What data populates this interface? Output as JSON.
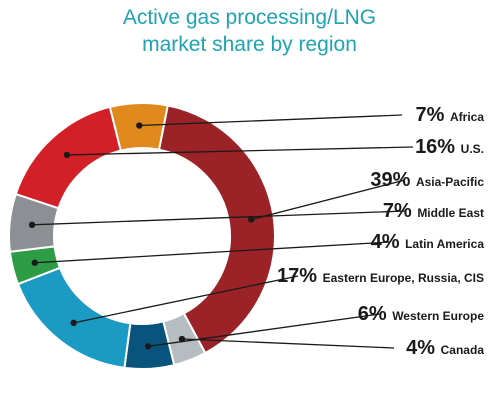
{
  "chart_data": {
    "type": "pie",
    "title": "Active gas processing/LNG market share by region",
    "title_lines": [
      "Active gas processing/LNG",
      "market share by region"
    ],
    "donut": true,
    "slices": [
      {
        "label": "Africa",
        "value": 7,
        "display": "7%",
        "color": "#e08a1e"
      },
      {
        "label": "Asia-Pacific",
        "value": 39,
        "display": "39%",
        "color": "#9b2226"
      },
      {
        "label": "Canada",
        "value": 4,
        "display": "4%",
        "color": "#b7bcc1"
      },
      {
        "label": "Western Europe",
        "value": 6,
        "display": "6%",
        "color": "#08547c"
      },
      {
        "label": "Eastern Europe, Russia, CIS",
        "value": 17,
        "display": "17%",
        "color": "#1b9ac3"
      },
      {
        "label": "Latin America",
        "value": 4,
        "display": "4%",
        "color": "#2e9c45"
      },
      {
        "label": "Middle East",
        "value": 7,
        "display": "7%",
        "color": "#8c9095"
      },
      {
        "label": "U.S.",
        "value": 16,
        "display": "16%",
        "color": "#d32027"
      }
    ],
    "legend_placement": "right, leader lines from slices"
  }
}
